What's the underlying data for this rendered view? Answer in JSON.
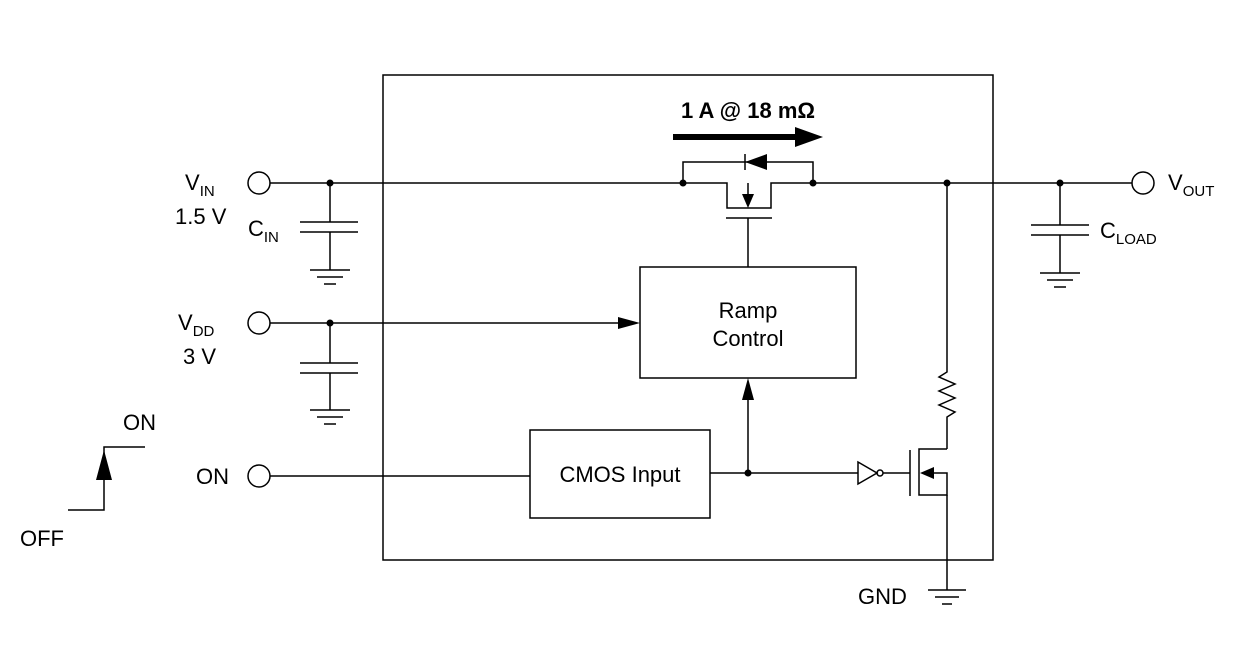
{
  "labels": {
    "current": "1 A @ 18 mΩ",
    "vin": {
      "main": "V",
      "sub": "IN"
    },
    "vin_value": "1.5 V",
    "cin": {
      "main": "C",
      "sub": "IN"
    },
    "vdd": {
      "main": "V",
      "sub": "DD"
    },
    "vdd_value": "3 V",
    "on_pin": "ON",
    "on_level": "ON",
    "off_level": "OFF",
    "vout": {
      "main": "V",
      "sub": "OUT"
    },
    "cload": {
      "main": "C",
      "sub": "LOAD"
    },
    "gnd": "GND",
    "ramp_line1": "Ramp",
    "ramp_line2": "Control",
    "cmos": "CMOS Input"
  }
}
